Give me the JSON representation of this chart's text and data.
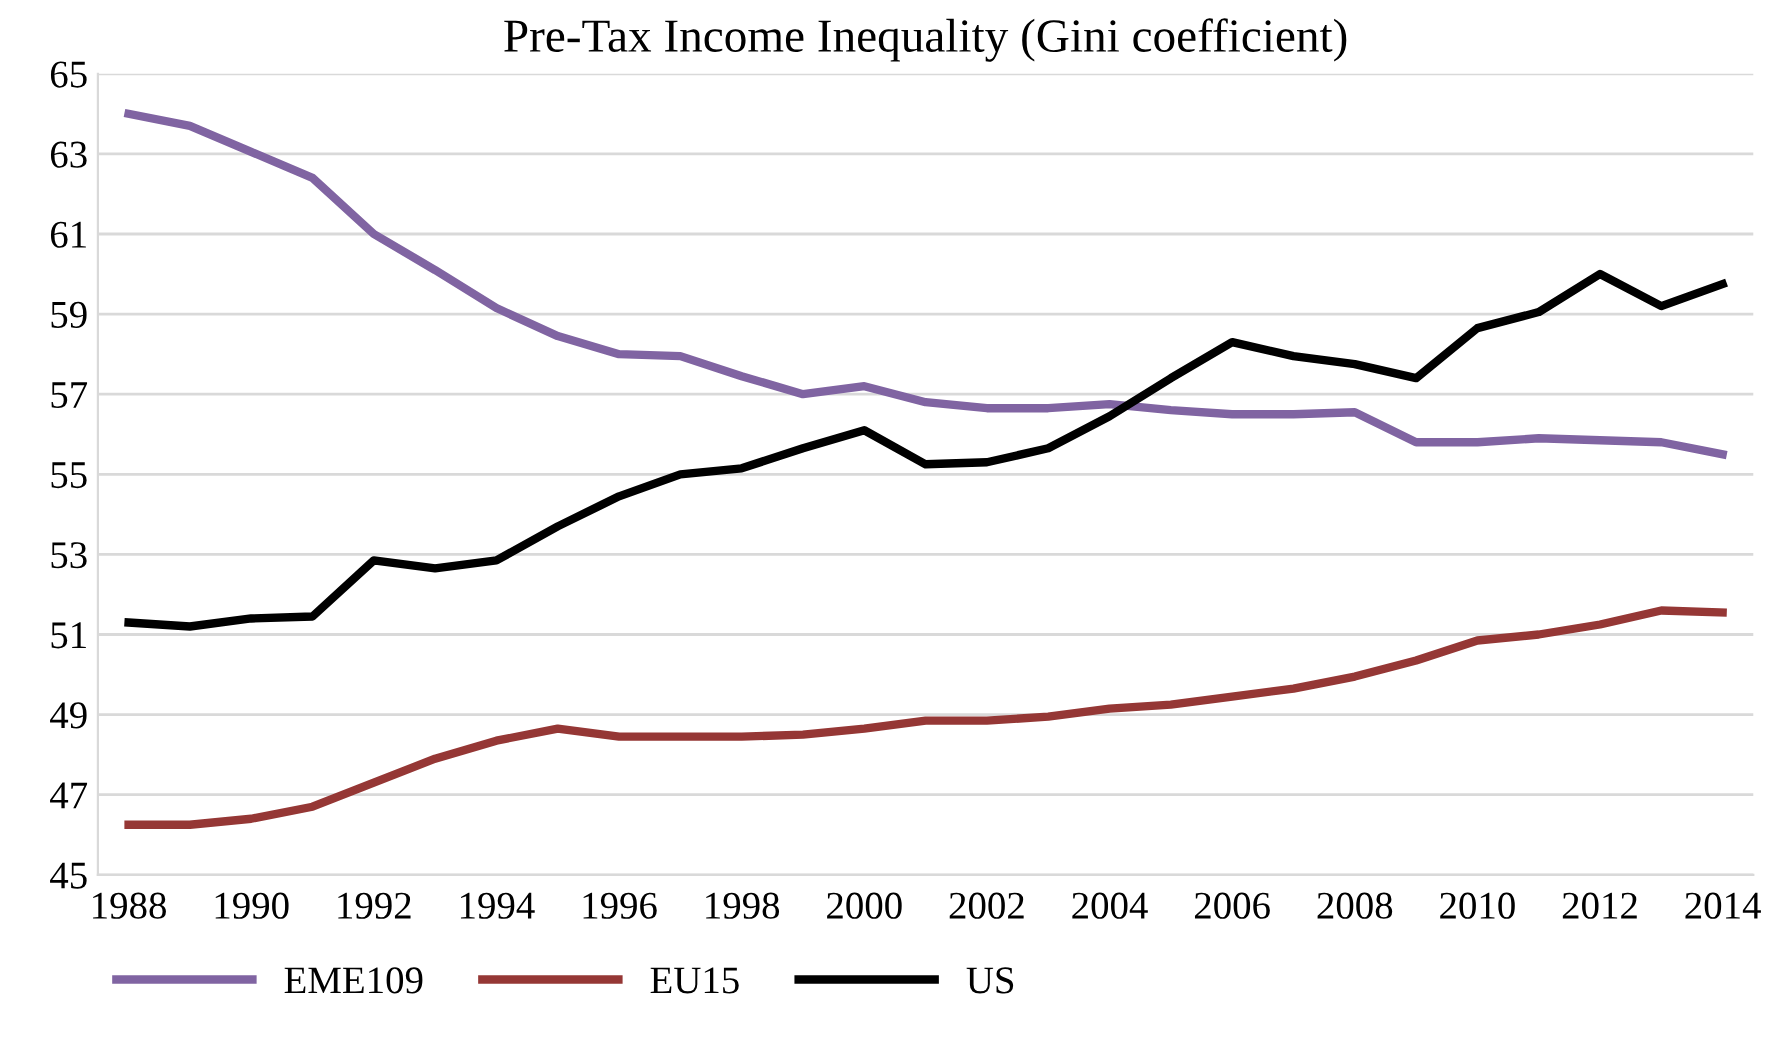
{
  "chart_data": {
    "type": "line",
    "title": "Pre-Tax Income Inequality (Gini coefficient)",
    "categories": [
      "1988",
      null,
      "1990",
      null,
      "1992",
      null,
      "1994",
      null,
      "1996",
      null,
      "1998",
      null,
      "2000",
      null,
      "2002",
      null,
      "2004",
      null,
      "2006",
      null,
      "2008",
      null,
      "2010",
      null,
      "2012",
      null,
      "2014"
    ],
    "series": [
      {
        "name": "EME109",
        "color": "#8064a2",
        "values": [
          64.0,
          63.7,
          63.05,
          62.4,
          61.0,
          60.1,
          59.15,
          58.45,
          58.0,
          57.95,
          57.45,
          57.0,
          57.2,
          56.8,
          56.65,
          56.65,
          56.75,
          56.6,
          56.5,
          56.5,
          56.55,
          55.8,
          55.8,
          55.9,
          55.85,
          55.8,
          55.5
        ]
      },
      {
        "name": "EU15",
        "color": "#953735",
        "values": [
          46.25,
          46.25,
          46.4,
          46.7,
          47.3,
          47.9,
          48.35,
          48.65,
          48.45,
          48.45,
          48.45,
          48.5,
          48.65,
          48.85,
          48.85,
          48.95,
          49.15,
          49.25,
          49.45,
          49.65,
          49.95,
          50.35,
          50.85,
          51.0,
          51.25,
          51.6,
          51.55
        ]
      },
      {
        "name": "US",
        "color": "#000000",
        "values": [
          51.3,
          51.2,
          51.4,
          51.45,
          52.85,
          52.65,
          52.85,
          53.7,
          54.45,
          55.0,
          55.15,
          55.65,
          56.1,
          55.25,
          55.3,
          55.65,
          56.45,
          57.4,
          58.3,
          57.95,
          57.75,
          57.4,
          58.65,
          59.05,
          60.0,
          59.2,
          59.75
        ]
      }
    ],
    "ylim": [
      45,
      65
    ],
    "yticks": [
      45,
      47,
      49,
      51,
      53,
      55,
      57,
      59,
      61,
      63,
      65
    ],
    "grid": "y",
    "legend": "bottom left",
    "marker": "none",
    "line_style": "solid"
  }
}
